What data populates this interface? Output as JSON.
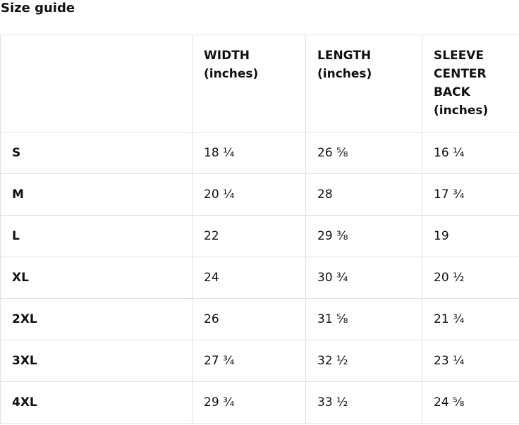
{
  "page": {
    "title": "Size guide"
  },
  "size_table": {
    "columns": {
      "size": "",
      "width": "WIDTH (inches)",
      "length": "LENGTH (inches)",
      "sleeve": "SLEEVE CENTER BACK (inches)"
    },
    "rows": [
      {
        "size": "S",
        "width": "18 ¼",
        "length": "26 ⅝",
        "sleeve": "16 ¼"
      },
      {
        "size": "M",
        "width": "20 ¼",
        "length": "28",
        "sleeve": "17 ¾"
      },
      {
        "size": "L",
        "width": "22",
        "length": "29 ⅜",
        "sleeve": "19"
      },
      {
        "size": "XL",
        "width": "24",
        "length": "30 ¾",
        "sleeve": "20 ½"
      },
      {
        "size": "2XL",
        "width": "26",
        "length": "31 ⅝",
        "sleeve": "21 ¾"
      },
      {
        "size": "3XL",
        "width": "27 ¾",
        "length": "32 ½",
        "sleeve": "23 ¼"
      },
      {
        "size": "4XL",
        "width": "29 ¾",
        "length": "33 ½",
        "sleeve": "24 ⅝"
      }
    ],
    "colors": {
      "text": "#111111",
      "border": "#e1e1e1",
      "background": "#ffffff"
    }
  }
}
